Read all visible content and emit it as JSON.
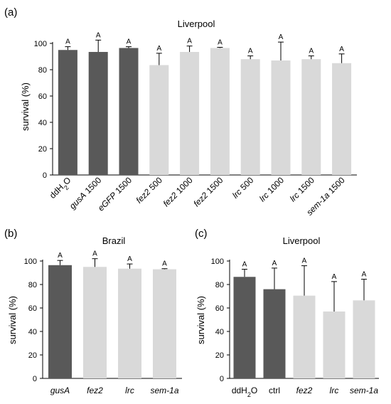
{
  "colors": {
    "control": "#595959",
    "treatment": "#d9d9d9",
    "axis": "#000000"
  },
  "chart_data": [
    {
      "panel": "(a)",
      "title": "Liverpool",
      "type": "bar",
      "ylabel": "survival (%)",
      "ylim": [
        0,
        100
      ],
      "yticks": [
        0,
        20,
        40,
        60,
        80,
        100
      ],
      "categories": [
        {
          "label": "ddH2O",
          "segs": [
            {
              "t": "ddH"
            },
            {
              "t": "2",
              "sub": true
            },
            {
              "t": "O"
            }
          ]
        },
        {
          "label": "gusA 1500",
          "segs": [
            {
              "t": "gusA",
              "it": true
            },
            {
              "t": " 1500"
            }
          ]
        },
        {
          "label": "eGFP 1500",
          "segs": [
            {
              "t": "eGFP",
              "it": true
            },
            {
              "t": " 1500"
            }
          ]
        },
        {
          "label": "fez2 500",
          "segs": [
            {
              "t": "fez2",
              "it": true
            },
            {
              "t": " 500"
            }
          ]
        },
        {
          "label": "fez2 1000",
          "segs": [
            {
              "t": "fez2",
              "it": true
            },
            {
              "t": " 1000"
            }
          ]
        },
        {
          "label": "fez2 1500",
          "segs": [
            {
              "t": "fez2",
              "it": true
            },
            {
              "t": " 1500"
            }
          ]
        },
        {
          "label": "lrc 500",
          "segs": [
            {
              "t": "lrc",
              "it": true
            },
            {
              "t": " 500"
            }
          ]
        },
        {
          "label": "lrc 1000",
          "segs": [
            {
              "t": "lrc",
              "it": true
            },
            {
              "t": " 1000"
            }
          ]
        },
        {
          "label": "lrc 1500",
          "segs": [
            {
              "t": "lrc",
              "it": true
            },
            {
              "t": " 1500"
            }
          ]
        },
        {
          "label": "sem-1a 1500",
          "segs": [
            {
              "t": "sem-1a",
              "it": true
            },
            {
              "t": " 1500"
            }
          ]
        }
      ],
      "values": [
        95,
        93.5,
        96.5,
        83.5,
        93.5,
        96.5,
        88,
        87,
        88,
        85
      ],
      "errors": [
        2.5,
        9,
        1,
        9,
        4.5,
        0.5,
        2.5,
        14,
        2.5,
        7
      ],
      "groups": [
        "control",
        "control",
        "control",
        "treatment",
        "treatment",
        "treatment",
        "treatment",
        "treatment",
        "treatment",
        "treatment"
      ],
      "significance": [
        "A",
        "A",
        "A",
        "A",
        "A",
        "A",
        "A",
        "A",
        "A",
        "A"
      ]
    },
    {
      "panel": "(b)",
      "title": "Brazil",
      "type": "bar",
      "ylabel": "survival (%)",
      "ylim": [
        0,
        100
      ],
      "yticks": [
        0,
        20,
        40,
        60,
        80,
        100
      ],
      "categories": [
        {
          "label": "gusA",
          "segs": [
            {
              "t": "gusA",
              "it": true
            }
          ]
        },
        {
          "label": "fez2",
          "segs": [
            {
              "t": "fez2",
              "it": true
            }
          ]
        },
        {
          "label": "lrc",
          "segs": [
            {
              "t": "lrc",
              "it": true
            }
          ]
        },
        {
          "label": "sem-1a",
          "segs": [
            {
              "t": "sem-1a",
              "it": true
            }
          ]
        }
      ],
      "values": [
        96.5,
        95,
        93.5,
        93
      ],
      "errors": [
        4,
        7,
        4,
        0.5
      ],
      "groups": [
        "control",
        "treatment",
        "treatment",
        "treatment"
      ],
      "significance": [
        "A",
        "A",
        "A",
        "A"
      ]
    },
    {
      "panel": "(c)",
      "title": "Liverpool",
      "type": "bar",
      "ylabel": "survival (%)",
      "ylim": [
        0,
        100
      ],
      "yticks": [
        0,
        20,
        40,
        60,
        80,
        100
      ],
      "categories": [
        {
          "label": "ddH2O",
          "segs": [
            {
              "t": "ddH"
            },
            {
              "t": "2",
              "sub": true
            },
            {
              "t": "O"
            }
          ]
        },
        {
          "label": "ctrl",
          "segs": [
            {
              "t": "ctrl"
            }
          ]
        },
        {
          "label": "fez2",
          "segs": [
            {
              "t": "fez2",
              "it": true
            }
          ]
        },
        {
          "label": "lrc",
          "segs": [
            {
              "t": "lrc",
              "it": true
            }
          ]
        },
        {
          "label": "sem-1a",
          "segs": [
            {
              "t": "sem-1a",
              "it": true
            }
          ]
        }
      ],
      "values": [
        86.5,
        76,
        70.5,
        57,
        66.5
      ],
      "errors": [
        6.5,
        18,
        25.5,
        25.5,
        18
      ],
      "groups": [
        "control",
        "control",
        "treatment",
        "treatment",
        "treatment"
      ],
      "significance": [
        "A",
        "A",
        "A",
        "A",
        "A"
      ]
    }
  ]
}
